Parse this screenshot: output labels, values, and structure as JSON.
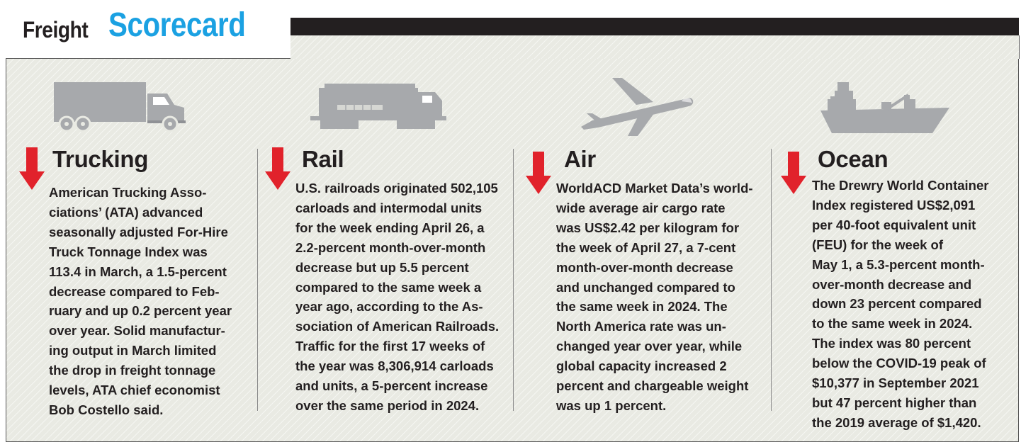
{
  "title": {
    "prefix": "Freight",
    "main": "Scorecard"
  },
  "colors": {
    "accent_blue": "#1ba1e2",
    "arrow_red": "#e1222b",
    "icon_gray": "#a7a9ac",
    "text": "#231f20"
  },
  "sections": [
    {
      "icon": "truck-icon",
      "trend": "down",
      "heading": "Trucking",
      "lines": [
        "American Trucking Asso-",
        "ciations’ (ATA) advanced",
        "seasonally adjusted For-Hire",
        "Truck Tonnage Index was",
        "113.4 in March, a 1.5-percent",
        "decrease compared to Feb-",
        "ruary and up 0.2 percent year",
        "over year. Solid manufactur-",
        "ing output in March limited",
        "the drop in freight tonnage",
        "levels, ATA chief economist",
        "Bob Costello said."
      ]
    },
    {
      "icon": "locomotive-icon",
      "trend": "down",
      "heading": "Rail",
      "lines": [
        "U.S. railroads originated 502,105",
        "carloads and intermodal units",
        "for the week ending April 26, a",
        "2.2-percent month-over-month",
        "decrease but up 5.5 percent",
        "compared to the same week a",
        "year ago, according to the As-",
        "sociation of American Railroads.",
        "Traffic for the first 17 weeks of",
        "the year was 8,306,914 carloads",
        "and units, a 5-percent increase",
        "over the same period in 2024."
      ]
    },
    {
      "icon": "airplane-icon",
      "trend": "down",
      "heading": "Air",
      "lines": [
        "WorldACD Market Data’s world-",
        "wide average air cargo rate",
        "was US$2.42 per kilogram for",
        "the week of April 27, a 7-cent",
        "month-over-month decrease",
        "and unchanged compared to",
        "the same week in 2024. The",
        "North America rate was un-",
        "changed year over year, while",
        "global capacity increased 2",
        "percent and chargeable weight",
        "was up 1 percent."
      ]
    },
    {
      "icon": "cargo-ship-icon",
      "trend": "down",
      "heading": "Ocean",
      "lines": [
        "The Drewry World Container",
        "Index registered US$2,091",
        "per 40-foot equivalent unit",
        "(FEU) for the week of",
        "May 1, a 5.3-percent month-",
        "over-month decrease and",
        "down 23 percent compared",
        "to the same week in 2024.",
        "The index was 80 percent",
        "below the COVID-19 peak of",
        "$10,377 in September 2021",
        "but 47 percent higher than",
        "the 2019 average of $1,420."
      ]
    }
  ]
}
